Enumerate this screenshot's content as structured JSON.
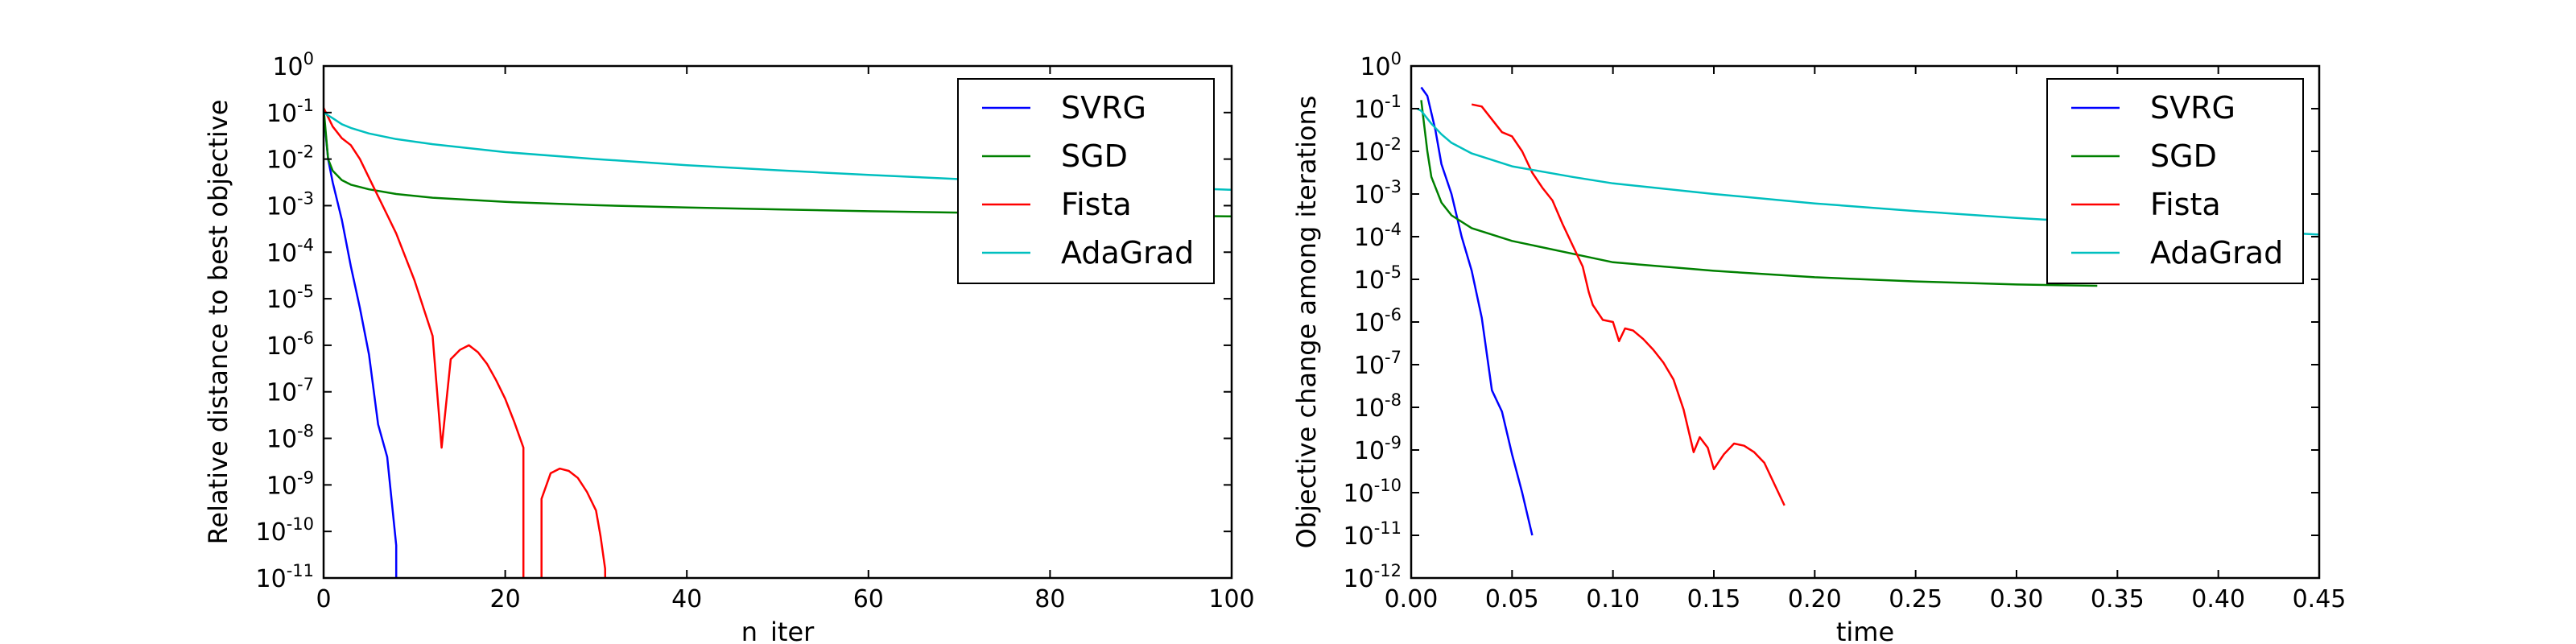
{
  "chart_data": [
    {
      "type": "line",
      "xlabel": "n_iter",
      "ylabel": "Relative distance to best objective",
      "xlim": [
        0,
        100
      ],
      "ylim_log10": [
        -11,
        0
      ],
      "yscale": "log",
      "x_ticks": [
        "0",
        "20",
        "40",
        "60",
        "80",
        "100"
      ],
      "y_ticks": [
        {
          "base": "10",
          "exp": "0"
        },
        {
          "base": "10",
          "exp": "-1"
        },
        {
          "base": "10",
          "exp": "-2"
        },
        {
          "base": "10",
          "exp": "-3"
        },
        {
          "base": "10",
          "exp": "-4"
        },
        {
          "base": "10",
          "exp": "-5"
        },
        {
          "base": "10",
          "exp": "-6"
        },
        {
          "base": "10",
          "exp": "-7"
        },
        {
          "base": "10",
          "exp": "-8"
        },
        {
          "base": "10",
          "exp": "-9"
        },
        {
          "base": "10",
          "exp": "-10"
        },
        {
          "base": "10",
          "exp": "-11"
        }
      ],
      "legend_position": "top-right",
      "grid": false,
      "series": [
        {
          "name": "SVRG",
          "color": "#0000ff",
          "x": [
            0,
            0.5,
            1,
            2,
            3,
            4,
            5,
            6,
            7,
            8,
            8,
            8.1
          ],
          "y": [
            -1.0,
            -2.0,
            -2.5,
            -3.3,
            -4.3,
            -5.2,
            -6.2,
            -7.7,
            -8.4,
            -10.3,
            -11.0,
            -12
          ]
        },
        {
          "name": "SGD",
          "color": "#008000",
          "x": [
            0,
            0.5,
            1,
            2,
            3,
            5,
            8,
            12,
            20,
            30,
            40,
            50,
            60,
            70,
            80,
            90,
            100
          ],
          "y": [
            -0.9,
            -2.0,
            -2.25,
            -2.45,
            -2.55,
            -2.65,
            -2.75,
            -2.83,
            -2.92,
            -2.99,
            -3.04,
            -3.08,
            -3.12,
            -3.15,
            -3.18,
            -3.21,
            -3.23
          ]
        },
        {
          "name": "Fista",
          "color": "#ff0000",
          "x": [
            0,
            1,
            2,
            3,
            4,
            5,
            6,
            7,
            8,
            9,
            10,
            11,
            12,
            13,
            14,
            15,
            16,
            17,
            18,
            19,
            20,
            21,
            22,
            22,
            24,
            24,
            25,
            26,
            27,
            28,
            29,
            30,
            30.5,
            31,
            31.05
          ],
          "y": [
            -0.9,
            -1.3,
            -1.55,
            -1.7,
            -2.0,
            -2.4,
            -2.8,
            -3.2,
            -3.6,
            -4.1,
            -4.6,
            -5.2,
            -5.8,
            -8.2,
            -6.3,
            -6.1,
            -6.0,
            -6.15,
            -6.4,
            -6.75,
            -7.15,
            -7.65,
            -8.2,
            -12,
            -12,
            -9.3,
            -8.75,
            -8.65,
            -8.7,
            -8.85,
            -9.15,
            -9.55,
            -10.1,
            -10.8,
            -12
          ]
        },
        {
          "name": "AdaGrad",
          "color": "#00bfbf",
          "x": [
            0,
            1,
            2,
            3,
            5,
            8,
            12,
            20,
            30,
            40,
            50,
            60,
            70,
            80,
            90,
            100
          ],
          "y": [
            -1.0,
            -1.12,
            -1.25,
            -1.33,
            -1.45,
            -1.57,
            -1.68,
            -1.85,
            -2.0,
            -2.13,
            -2.24,
            -2.34,
            -2.43,
            -2.51,
            -2.59,
            -2.66
          ]
        }
      ]
    },
    {
      "type": "line",
      "xlabel": "time",
      "ylabel": "Objective change among iterations",
      "xlim": [
        0,
        0.45
      ],
      "ylim_log10": [
        -12,
        0
      ],
      "yscale": "log",
      "x_ticks": [
        "0.00",
        "0.05",
        "0.10",
        "0.15",
        "0.20",
        "0.25",
        "0.30",
        "0.35",
        "0.40",
        "0.45"
      ],
      "y_ticks": [
        {
          "base": "10",
          "exp": "0"
        },
        {
          "base": "10",
          "exp": "-1"
        },
        {
          "base": "10",
          "exp": "-2"
        },
        {
          "base": "10",
          "exp": "-3"
        },
        {
          "base": "10",
          "exp": "-4"
        },
        {
          "base": "10",
          "exp": "-5"
        },
        {
          "base": "10",
          "exp": "-6"
        },
        {
          "base": "10",
          "exp": "-7"
        },
        {
          "base": "10",
          "exp": "-8"
        },
        {
          "base": "10",
          "exp": "-9"
        },
        {
          "base": "10",
          "exp": "-10"
        },
        {
          "base": "10",
          "exp": "-11"
        },
        {
          "base": "10",
          "exp": "-12"
        }
      ],
      "legend_position": "top-right",
      "grid": false,
      "series": [
        {
          "name": "SVRG",
          "color": "#0000ff",
          "x": [
            0.005,
            0.008,
            0.01,
            0.012,
            0.015,
            0.02,
            0.025,
            0.03,
            0.035,
            0.04,
            0.045,
            0.05,
            0.055,
            0.06
          ],
          "y": [
            -0.5,
            -0.7,
            -1.1,
            -1.5,
            -2.3,
            -3.0,
            -4.0,
            -4.8,
            -5.9,
            -7.6,
            -8.1,
            -9.1,
            -10.0,
            -11.0
          ]
        },
        {
          "name": "SGD",
          "color": "#008000",
          "x": [
            0.005,
            0.006,
            0.008,
            0.01,
            0.015,
            0.02,
            0.03,
            0.05,
            0.08,
            0.1,
            0.15,
            0.2,
            0.25,
            0.3,
            0.34
          ],
          "y": [
            -0.8,
            -1.2,
            -2.0,
            -2.6,
            -3.2,
            -3.5,
            -3.8,
            -4.1,
            -4.4,
            -4.6,
            -4.8,
            -4.95,
            -5.05,
            -5.12,
            -5.15
          ]
        },
        {
          "name": "Fista",
          "color": "#ff0000",
          "x": [
            0.03,
            0.035,
            0.04,
            0.045,
            0.05,
            0.055,
            0.06,
            0.065,
            0.07,
            0.075,
            0.08,
            0.085,
            0.088,
            0.09,
            0.095,
            0.1,
            0.103,
            0.106,
            0.11,
            0.115,
            0.12,
            0.125,
            0.13,
            0.135,
            0.14,
            0.143,
            0.147,
            0.15,
            0.155,
            0.16,
            0.165,
            0.17,
            0.175,
            0.18,
            0.185
          ],
          "y": [
            -0.9,
            -0.95,
            -1.25,
            -1.55,
            -1.65,
            -2.0,
            -2.5,
            -2.85,
            -3.15,
            -3.7,
            -4.2,
            -4.7,
            -5.3,
            -5.6,
            -5.95,
            -6.0,
            -6.45,
            -6.15,
            -6.2,
            -6.4,
            -6.65,
            -6.95,
            -7.35,
            -8.05,
            -9.05,
            -8.7,
            -8.95,
            -9.45,
            -9.1,
            -8.85,
            -8.9,
            -9.05,
            -9.3,
            -9.8,
            -10.3
          ]
        },
        {
          "name": "AdaGrad",
          "color": "#00bfbf",
          "x": [
            0.003,
            0.005,
            0.01,
            0.015,
            0.02,
            0.03,
            0.05,
            0.08,
            0.1,
            0.15,
            0.2,
            0.25,
            0.3,
            0.35,
            0.4,
            0.45
          ],
          "y": [
            -1.0,
            -1.05,
            -1.35,
            -1.6,
            -1.8,
            -2.05,
            -2.35,
            -2.6,
            -2.75,
            -3.0,
            -3.22,
            -3.4,
            -3.56,
            -3.7,
            -3.83,
            -3.95
          ]
        }
      ]
    }
  ]
}
